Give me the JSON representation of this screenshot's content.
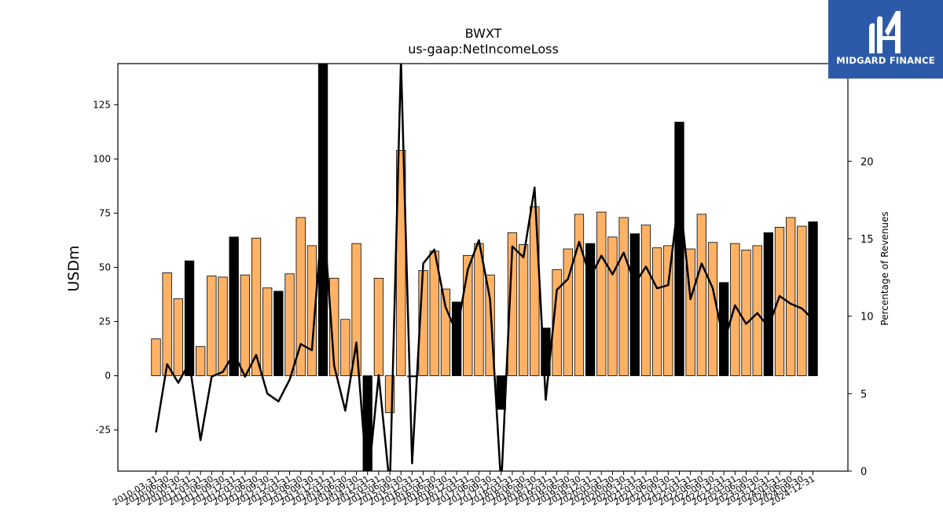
{
  "chart_data": {
    "type": "bar",
    "title": "BWXT",
    "subtitle": "us-gaap:NetIncomeLoss",
    "ylabel": "USDm",
    "y2label": "Percentage of Revenues",
    "ylim": [
      -44,
      144
    ],
    "y2lim": [
      0,
      26.3
    ],
    "yticks": [
      -25,
      0,
      25,
      50,
      75,
      100,
      125
    ],
    "y2ticks": [
      0,
      5,
      10,
      15,
      20
    ],
    "colors": {
      "quarter_bar": "#ffb266",
      "annual_bar": "#000000",
      "line": "#000000"
    },
    "categories": [
      "2010-03-31",
      "2010-06-30",
      "2010-09-30",
      "2010-12-31",
      "2011-03-31",
      "2011-06-30",
      "2011-09-30",
      "2011-12-31",
      "2012-03-31",
      "2012-06-30",
      "2012-09-30",
      "2012-12-31",
      "2013-03-31",
      "2013-06-30",
      "2013-09-30",
      "2013-12-31",
      "2014-03-31",
      "2014-06-30",
      "2014-09-30",
      "2014-12-31",
      "2015-03-31",
      "2015-06-30",
      "2015-09-30",
      "2015-12-31",
      "2016-03-31",
      "2016-06-30",
      "2016-09-30",
      "2016-12-31",
      "2017-03-31",
      "2017-06-30",
      "2017-09-30",
      "2017-12-31",
      "2018-03-31",
      "2018-06-30",
      "2018-09-30",
      "2018-12-31",
      "2019-03-31",
      "2019-06-30",
      "2019-09-30",
      "2019-12-31",
      "2020-03-31",
      "2020-06-30",
      "2020-09-30",
      "2020-12-31",
      "2021-03-31",
      "2021-06-30",
      "2021-09-30",
      "2021-12-31",
      "2022-03-31",
      "2022-06-30",
      "2022-09-30",
      "2022-12-31",
      "2023-03-31",
      "2023-06-30",
      "2023-09-30",
      "2023-12-31",
      "2024-03-31",
      "2024-06-30",
      "2024-09-30",
      "2024-12-31"
    ],
    "series": [
      {
        "type": "bar",
        "values": [
          17,
          47.5,
          35.5,
          53,
          13.5,
          46,
          45.5,
          64,
          46.5,
          63.5,
          40.5,
          39,
          47,
          73,
          60,
          144,
          45,
          26,
          61,
          -44,
          45,
          -17,
          104,
          -0.5,
          48.5,
          57.5,
          40,
          34,
          55.5,
          61,
          46.5,
          -15.5,
          66,
          60.5,
          78,
          22,
          49,
          58.5,
          74.5,
          61,
          75.5,
          64,
          73,
          65.5,
          69.5,
          59,
          60,
          117,
          58.5,
          74.5,
          61.5,
          43,
          61,
          58,
          60,
          66,
          68.5,
          73,
          69,
          71
        ],
        "annual": [
          false,
          false,
          false,
          true,
          false,
          false,
          false,
          true,
          false,
          false,
          false,
          true,
          false,
          false,
          false,
          true,
          false,
          false,
          false,
          true,
          false,
          false,
          false,
          true,
          false,
          false,
          false,
          true,
          false,
          false,
          false,
          true,
          false,
          false,
          false,
          true,
          false,
          false,
          false,
          true,
          false,
          false,
          false,
          true,
          false,
          false,
          false,
          true,
          false,
          false,
          false,
          true,
          false,
          false,
          false,
          true,
          false,
          false,
          false,
          true
        ]
      },
      {
        "type": "line",
        "axis": "right",
        "values": [
          2.5,
          6.9,
          5.7,
          7.0,
          2.0,
          6.1,
          6.4,
          7.6,
          6.1,
          7.5,
          5.0,
          4.5,
          5.9,
          8.2,
          7.8,
          17.0,
          6.8,
          3.9,
          8.3,
          -1.0,
          6.2,
          -1.0,
          26.5,
          0.5,
          13.4,
          14.3,
          10.6,
          8.9,
          13.0,
          14.9,
          11.1,
          -1.0,
          14.5,
          13.8,
          18.3,
          4.6,
          11.7,
          12.4,
          14.8,
          12.5,
          13.9,
          12.7,
          14.1,
          12.1,
          13.2,
          11.8,
          12.0,
          18.0,
          11.1,
          13.4,
          11.8,
          8.3,
          10.7,
          9.5,
          10.2,
          9.3,
          11.3,
          10.8,
          10.5,
          9.8
        ]
      }
    ]
  },
  "logo": {
    "text": "MIDGARD FINANCE",
    "icon": "midgard-m-icon",
    "background": "#2c5aa8"
  }
}
